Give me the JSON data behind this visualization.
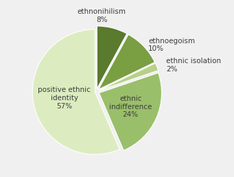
{
  "labels_short": [
    "ethnonihilism\n8%",
    "ethnoegoism\n10%",
    "ethnic isolation\n2%",
    "ethnic\nindifference\n24%",
    "positive ethnic\nidentity\n57%"
  ],
  "values": [
    8,
    10,
    2,
    24,
    57
  ],
  "colors": [
    "#5a7a2e",
    "#7a9e42",
    "#b8cf8a",
    "#9abf6a",
    "#ddecc0"
  ],
  "explode": [
    0.05,
    0.05,
    0.05,
    0.05,
    0.02
  ],
  "startangle": 90,
  "background_color": "#f0f0f0",
  "text_color": "#3a3a3a",
  "fontsize": 7.5
}
